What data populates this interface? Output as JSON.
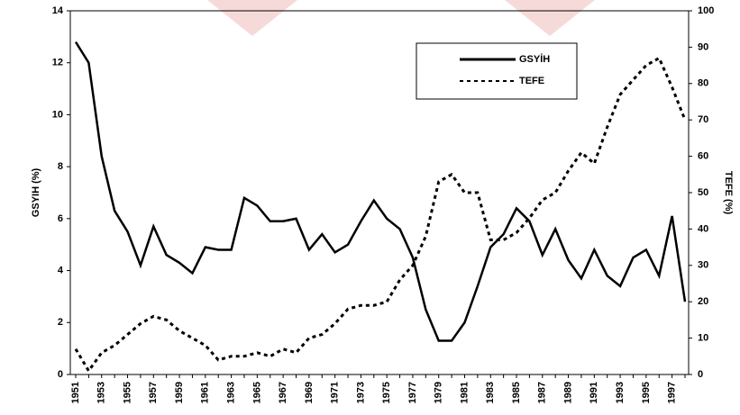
{
  "chart_data": {
    "type": "line",
    "categories": [
      "1951",
      null,
      "1953",
      null,
      "1955",
      null,
      "1957",
      null,
      "1959",
      null,
      "1961",
      null,
      "1963",
      null,
      "1965",
      null,
      "1967",
      null,
      "1969",
      null,
      "1971",
      null,
      "1973",
      null,
      "1975",
      null,
      "1977",
      null,
      "1979",
      null,
      "1981",
      null,
      "1983",
      null,
      "1985",
      null,
      "1987",
      null,
      "1989",
      null,
      "1991",
      null,
      "1993",
      null,
      "1995",
      null,
      "1997",
      null
    ],
    "series": [
      {
        "name": "GSYİH",
        "color": "#000000",
        "dash": "solid",
        "axis": "y",
        "values": [
          12.8,
          12.0,
          8.4,
          6.3,
          5.5,
          4.2,
          5.7,
          4.6,
          4.3,
          3.9,
          4.9,
          4.8,
          4.8,
          6.8,
          6.5,
          5.9,
          5.9,
          6.0,
          4.8,
          5.4,
          4.7,
          5.0,
          5.9,
          6.7,
          6.0,
          5.6,
          4.5,
          2.5,
          1.3,
          1.3,
          2.0,
          3.4,
          4.9,
          5.4,
          6.4,
          5.9,
          4.6,
          5.6,
          4.4,
          3.7,
          4.8,
          3.8,
          3.4,
          4.5,
          4.8,
          3.8,
          6.1,
          2.8
        ]
      },
      {
        "name": "TEFE",
        "color": "#000000",
        "dash": "dotted",
        "axis": "y2",
        "values": [
          7,
          1,
          6,
          8,
          11,
          14,
          16,
          15,
          12,
          10,
          8,
          4,
          5,
          5,
          6,
          5,
          7,
          6,
          10,
          11,
          14,
          18,
          19,
          19,
          20,
          26,
          30,
          38,
          53,
          55,
          50,
          50,
          37,
          37,
          39,
          43,
          48,
          50,
          56,
          61,
          58,
          68,
          77,
          81,
          85,
          87,
          79,
          70
        ]
      }
    ],
    "ylabel": "GSYIH (%)",
    "y2label": "TEFE (%)",
    "ylim": [
      0,
      14
    ],
    "yticks": [
      0,
      2,
      4,
      6,
      8,
      10,
      12,
      14
    ],
    "y2lim": [
      0,
      100
    ],
    "y2ticks": [
      0,
      10,
      20,
      30,
      40,
      50,
      60,
      70,
      80,
      90,
      100
    ]
  }
}
